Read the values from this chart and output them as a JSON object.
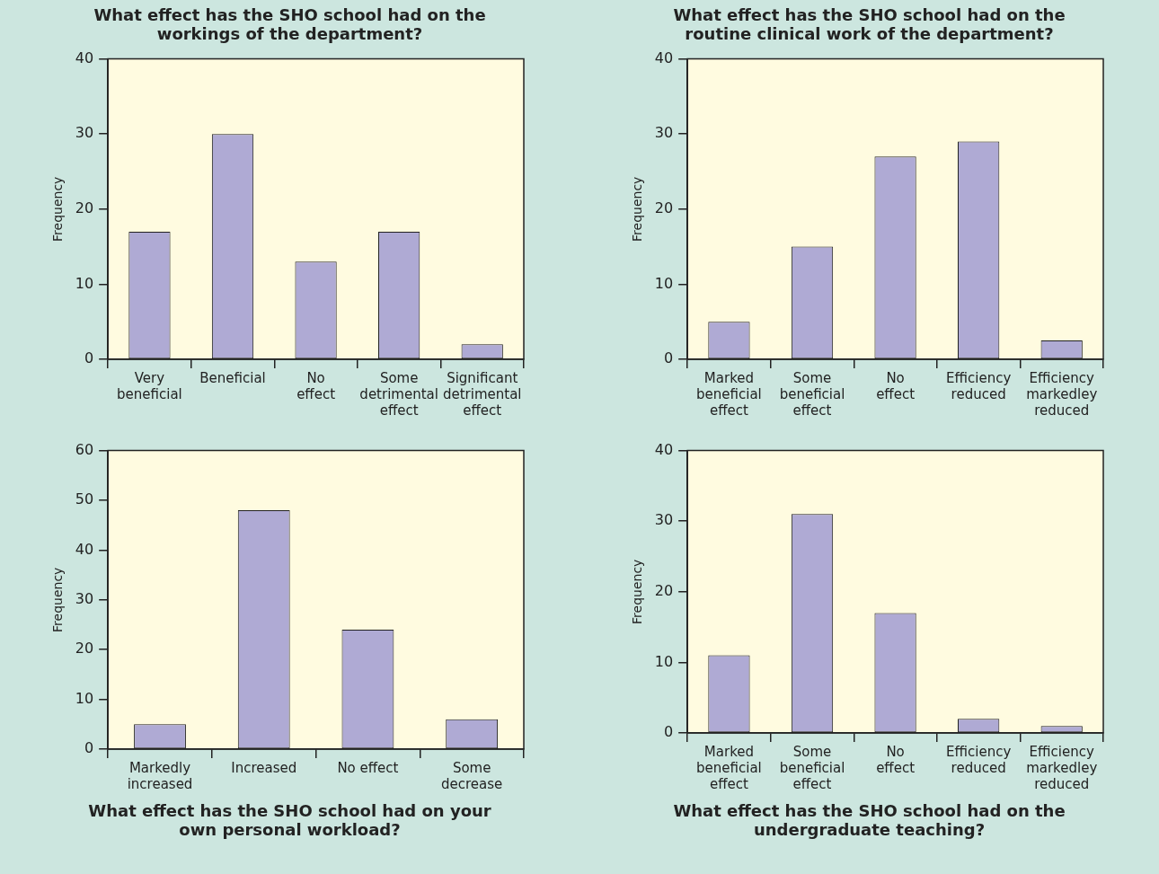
{
  "chart_data": [
    {
      "type": "bar",
      "title": "What effect has the SHO school had on the workings of the department?",
      "ylabel": "Frequency",
      "categories": [
        "Very beneficial",
        "Beneficial",
        "No effect",
        "Some detrimental effect",
        "Significant detrimental effect"
      ],
      "values": [
        17,
        30,
        13,
        17,
        2
      ],
      "color": "#afaad4",
      "ylim": [
        0,
        40
      ],
      "yticks": [
        0,
        10,
        20,
        30,
        40
      ],
      "grid": false,
      "legend": false
    },
    {
      "type": "bar",
      "title": "What effect has the SHO school had on the routine clinical work of the department?",
      "ylabel": "Frequency",
      "categories": [
        "Marked beneficial effect",
        "Some beneficial effect",
        "No effect",
        "Efficiency reduced",
        "Efficiency markedley reduced"
      ],
      "values": [
        5,
        15,
        27,
        29,
        2.5
      ],
      "color": "#afaad4",
      "ylim": [
        0,
        40
      ],
      "yticks": [
        0,
        10,
        20,
        30,
        40
      ],
      "grid": false,
      "legend": false
    },
    {
      "type": "bar",
      "title": "What effect has the SHO school had on your own personal workload?",
      "ylabel": "Frequency",
      "categories": [
        "Markedly increased",
        "Increased",
        "No effect",
        "Some decrease"
      ],
      "values": [
        5,
        48,
        24,
        6
      ],
      "color": "#afaad4",
      "ylim": [
        0,
        60
      ],
      "yticks": [
        0,
        10,
        20,
        30,
        40,
        50,
        60
      ],
      "grid": false,
      "legend": false
    },
    {
      "type": "bar",
      "title": "What effect has the SHO school had on the undergraduate teaching?",
      "ylabel": "Frequency",
      "categories": [
        "Marked beneficial effect",
        "Some beneficial effect",
        "No effect",
        "Efficiency reduced",
        "Efficiency markedley reduced"
      ],
      "values": [
        11,
        31,
        17,
        2,
        1
      ],
      "color": "#afaad4",
      "ylim": [
        0,
        40
      ],
      "yticks": [
        0,
        10,
        20,
        30,
        40
      ],
      "grid": false,
      "legend": false
    }
  ]
}
